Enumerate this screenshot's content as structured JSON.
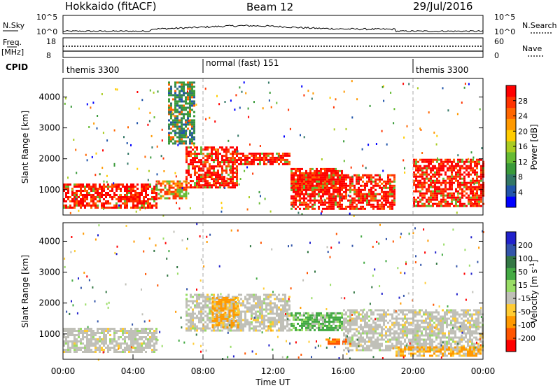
{
  "header": {
    "left_title": "Hokkaido (fitACF)",
    "center_title": "Beam 12",
    "right_title": "29/Jul/2016"
  },
  "top_panels": {
    "nsky_label": "N.Sky",
    "nsky_tick_top": "10^5",
    "nsky_tick_bottom": "10^0",
    "nsearch_label": "N.Search",
    "nsky_right_tick_top": "10^5",
    "nsky_right_tick_bottom": "10^0",
    "freq_label": "Freq.",
    "freq_unit": "[MHz]",
    "freq_tick_top": "18",
    "freq_tick_bottom": "8",
    "nave_label": "Nave",
    "nave_tick_top": "60",
    "nave_tick_bottom": "0",
    "cpid_label": "CPID",
    "cpid_segments": [
      {
        "label": "themis 3300",
        "start": 0,
        "end": 8
      },
      {
        "label": "normal (fast) 151",
        "start": 8,
        "end": 20
      },
      {
        "label": "themis 3300",
        "start": 20,
        "end": 24
      }
    ]
  },
  "chart_data": [
    {
      "type": "heatmap",
      "name": "power",
      "ylabel": "Slant Range [km]",
      "xlabel": "",
      "xlim": [
        0,
        24
      ],
      "ylim": [
        180,
        4600
      ],
      "yticks": [
        1000,
        2000,
        3000,
        4000
      ],
      "colorbar": {
        "label": "Power [dB]",
        "ticks": [
          "4",
          "8",
          "12",
          "16",
          "20",
          "24",
          "28"
        ],
        "colors": [
          "#0000ff",
          "#2255aa",
          "#337766",
          "#3a9a3a",
          "#66bb33",
          "#aacc22",
          "#ffcc00",
          "#ff9900",
          "#ff6600",
          "#ff3300",
          "#ff0000"
        ]
      },
      "regions": [
        {
          "x": [
            0,
            5.3
          ],
          "y": [
            400,
            1200
          ],
          "level": "high"
        },
        {
          "x": [
            5.3,
            7
          ],
          "y": [
            700,
            1300
          ],
          "level": "mid"
        },
        {
          "x": [
            7,
            10
          ],
          "y": [
            1100,
            2400
          ],
          "level": "high"
        },
        {
          "x": [
            10,
            13
          ],
          "y": [
            1800,
            2200
          ],
          "level": "high"
        },
        {
          "x": [
            13,
            16
          ],
          "y": [
            1000,
            1700
          ],
          "level": "high"
        },
        {
          "x": [
            13,
            19
          ],
          "y": [
            400,
            1500
          ],
          "level": "high"
        },
        {
          "x": [
            20,
            24
          ],
          "y": [
            500,
            2000
          ],
          "level": "high"
        },
        {
          "x": [
            6,
            7.5
          ],
          "y": [
            2500,
            4500
          ],
          "level": "low"
        }
      ]
    },
    {
      "type": "heatmap",
      "name": "velocity",
      "ylabel": "Slant Range [km]",
      "xlabel": "Time UT",
      "xlim": [
        0,
        24
      ],
      "ylim": [
        180,
        4600
      ],
      "yticks": [
        1000,
        2000,
        3000,
        4000
      ],
      "xticks": [
        "00:00",
        "04:00",
        "08:00",
        "12:00",
        "16:00",
        "20:00",
        "00:00"
      ],
      "colorbar": {
        "label": "Velocity [m s^-1]",
        "ticks": [
          "200",
          "100",
          "50",
          "15",
          "-15",
          "-50",
          "-100",
          "-200"
        ],
        "colors": [
          "#2222cc",
          "#3355aa",
          "#337744",
          "#44aa44",
          "#99dd66",
          "#c0c0b8",
          "#ffcc33",
          "#ff9900",
          "#ff5500",
          "#ff0000"
        ]
      },
      "regions": [
        {
          "x": [
            0,
            5.3
          ],
          "y": [
            400,
            1200
          ],
          "level": "ground"
        },
        {
          "x": [
            7,
            13
          ],
          "y": [
            1100,
            2300
          ],
          "level": "ground"
        },
        {
          "x": [
            8.5,
            10
          ],
          "y": [
            1200,
            2200
          ],
          "level": "away"
        },
        {
          "x": [
            13,
            16
          ],
          "y": [
            1100,
            1700
          ],
          "level": "toward"
        },
        {
          "x": [
            15,
            16.5
          ],
          "y": [
            650,
            850
          ],
          "level": "away_fast"
        },
        {
          "x": [
            16,
            24
          ],
          "y": [
            500,
            1800
          ],
          "level": "ground"
        },
        {
          "x": [
            19,
            24
          ],
          "y": [
            300,
            600
          ],
          "level": "away"
        }
      ]
    }
  ]
}
